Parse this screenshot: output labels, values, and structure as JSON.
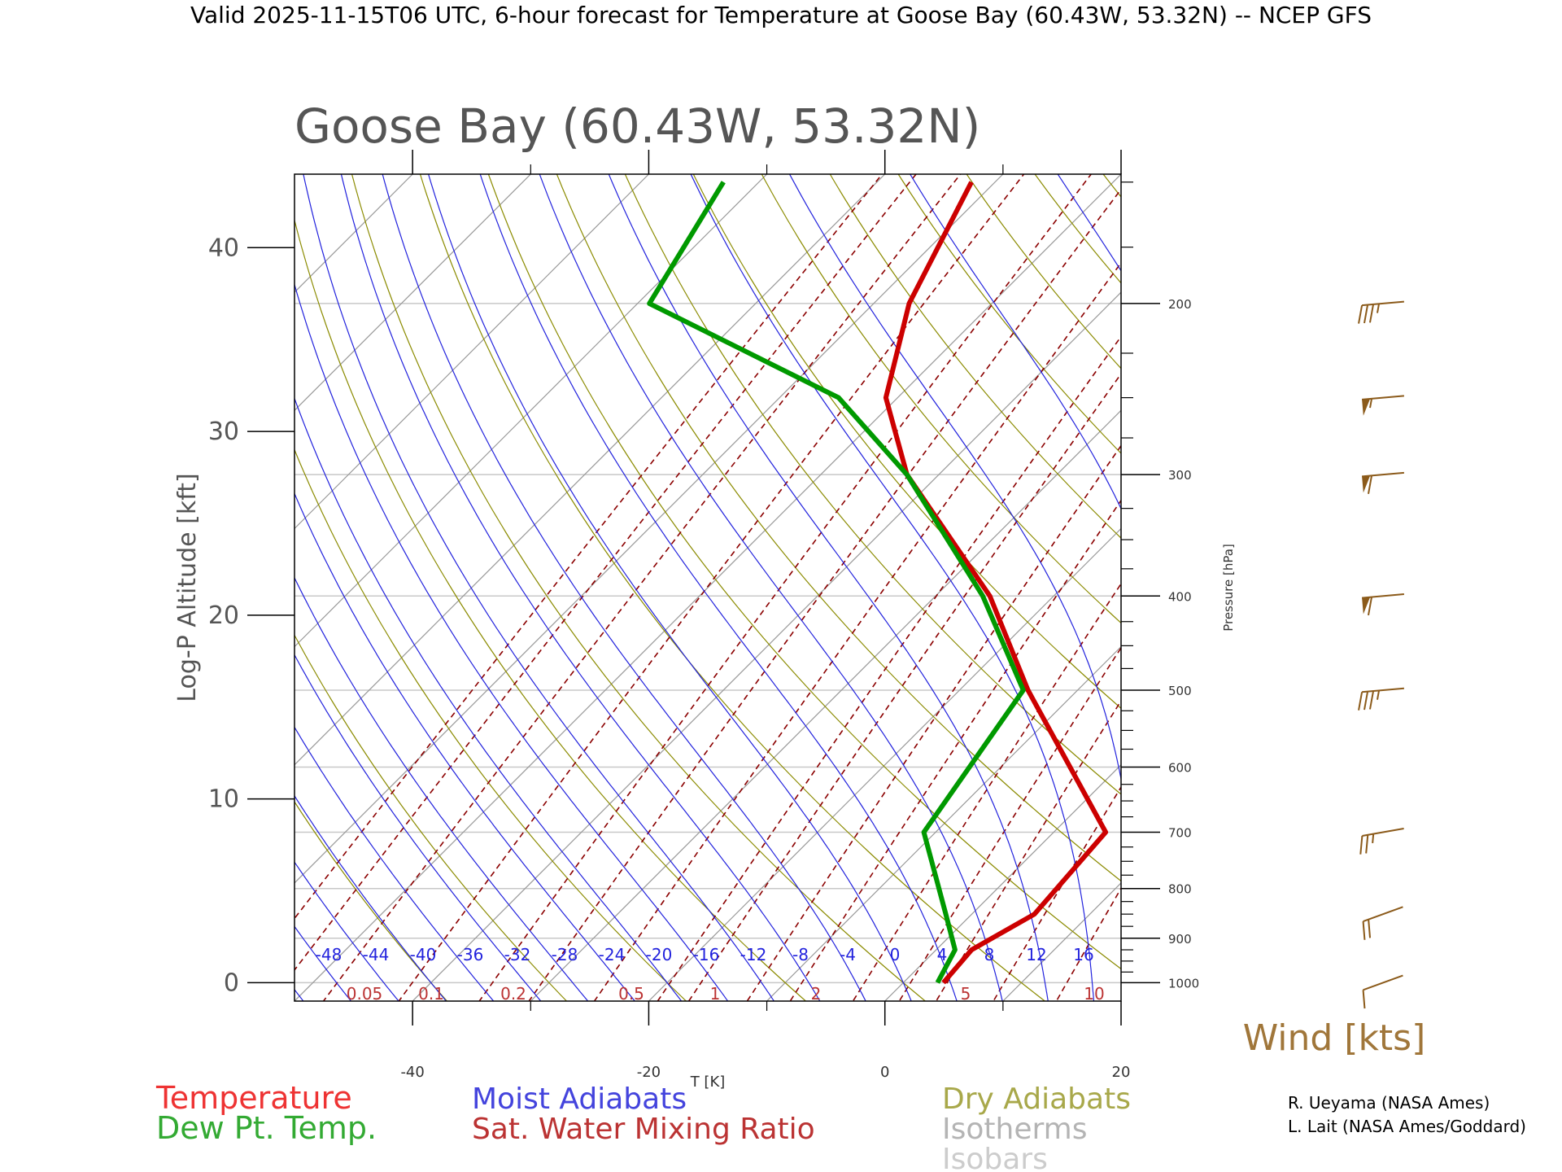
{
  "header": {
    "valid_text": "Valid 2025-11-15T06 UTC, 6-hour forecast for Temperature at Goose Bay (60.43W, 53.32N) -- NCEP GFS"
  },
  "chart_data": {
    "type": "line",
    "title": "Goose Bay (60.43W, 53.32N)",
    "xlabel": "T [K]",
    "ylabel": "Log-P Altitude [kft]",
    "y2label": "Pressure [hPa]",
    "xlim": [
      -50,
      20
    ],
    "ylim": [
      -1,
      44
    ],
    "x_ticks": [
      -40,
      -20,
      0,
      20
    ],
    "y_ticks": [
      0,
      10,
      20,
      30,
      40
    ],
    "pressure_ticks_labeled": [
      1000,
      900,
      800,
      700,
      600,
      500,
      400,
      300,
      200
    ],
    "pressure_ticks_minor": [
      950,
      850,
      750,
      650,
      550,
      450,
      350,
      250,
      150
    ],
    "skew": "isotherms slanted at 45 degrees",
    "grid": true,
    "moist_adiabat_labels": [
      "-48",
      "-44",
      "-40",
      "-36",
      "-32",
      "-28",
      "-24",
      "-20",
      "-16",
      "-12",
      "-8",
      "-4",
      "0",
      "4",
      "8",
      "12",
      "16"
    ],
    "mixing_ratio_labels": [
      "0.05",
      "0.1",
      "0.2",
      "0.5",
      "1",
      "2",
      "5",
      "10"
    ],
    "series": [
      {
        "name": "Temperature",
        "color": "#cc0000",
        "points": [
          {
            "p": 1000,
            "t": 3.4
          },
          {
            "p": 925,
            "t": 3.0
          },
          {
            "p": 850,
            "t": 5.3
          },
          {
            "p": 700,
            "t": 4.4
          },
          {
            "p": 500,
            "t": -14.2
          },
          {
            "p": 400,
            "t": -25.4
          },
          {
            "p": 300,
            "t": -42.7
          },
          {
            "p": 250,
            "t": -51.0
          },
          {
            "p": 200,
            "t": -57.0
          },
          {
            "p": 150,
            "t": -62.0
          }
        ]
      },
      {
        "name": "Dew Pt. Temp.",
        "color": "#009900",
        "points": [
          {
            "p": 1000,
            "t": 2.9
          },
          {
            "p": 925,
            "t": 1.6
          },
          {
            "p": 850,
            "t": -2.2
          },
          {
            "p": 700,
            "t": -11.0
          },
          {
            "p": 500,
            "t": -14.6
          },
          {
            "p": 400,
            "t": -26.0
          },
          {
            "p": 300,
            "t": -42.7
          },
          {
            "p": 250,
            "t": -55.0
          },
          {
            "p": 200,
            "t": -79.0
          },
          {
            "p": 150,
            "t": -83.0
          }
        ]
      }
    ],
    "wind_barbs": [
      {
        "p": 1000,
        "dir": 290,
        "speed_kts": 10
      },
      {
        "p": 850,
        "dir": 290,
        "speed_kts": 20
      },
      {
        "p": 700,
        "dir": 280,
        "speed_kts": 25
      },
      {
        "p": 500,
        "dir": 275,
        "speed_kts": 35
      },
      {
        "p": 400,
        "dir": 275,
        "speed_kts": 60
      },
      {
        "p": 300,
        "dir": 275,
        "speed_kts": 60
      },
      {
        "p": 250,
        "dir": 275,
        "speed_kts": 55
      },
      {
        "p": 200,
        "dir": 275,
        "speed_kts": 35
      }
    ],
    "wind_label": "Wind [kts]"
  },
  "legend": {
    "temperature": "Temperature",
    "dewpoint": "Dew Pt. Temp.",
    "moist_adiabats": "Moist Adiabats",
    "mixing_ratio": "Sat. Water Mixing Ratio",
    "dry_adiabats": "Dry Adiabats",
    "isotherms": "Isotherms",
    "isobars": "Isobars"
  },
  "credits": {
    "line1": "R. Ueyama (NASA Ames)",
    "line2": "L. Lait (NASA Ames/Goddard)"
  },
  "colors": {
    "temperature": "#cc0000",
    "dewpoint": "#009900",
    "moist": "#2222dd",
    "mixing": "#8b0000",
    "dry": "#8b8b00",
    "isotherm": "#999999",
    "isobar": "#c8c8c8",
    "wind": "#8b5a1a"
  }
}
